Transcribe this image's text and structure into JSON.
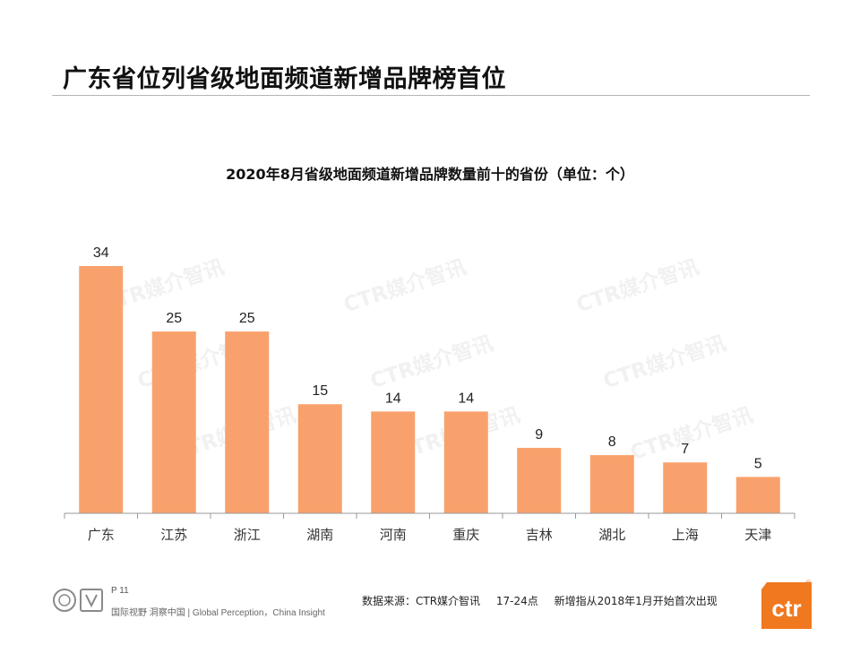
{
  "slide": {
    "title": "广东省位列省级地面频道新增品牌榜首位"
  },
  "chart_data": {
    "type": "bar",
    "title": "2020年8月省级地面频道新增品牌数量前十的省份（单位：个）",
    "categories": [
      "广东",
      "江苏",
      "浙江",
      "湖南",
      "河南",
      "重庆",
      "吉林",
      "湖北",
      "上海",
      "天津"
    ],
    "values": [
      34,
      25,
      25,
      15,
      14,
      14,
      9,
      8,
      7,
      5
    ],
    "xlabel": "",
    "ylabel": "",
    "ylim": [
      0,
      36
    ],
    "grid": false,
    "legend": "none",
    "data_labels": true,
    "bar_color": "#F9A16C"
  },
  "watermark": {
    "text": "CTR媒介智讯"
  },
  "footer": {
    "page": "P 11",
    "slogan": "国际视野  洞察中国 |  Global Perception，China Insight",
    "source": "数据来源：CTR媒介智讯",
    "time": "17-24点",
    "note": "新增指从2018年1月开始首次出现",
    "logo_text": "ctr",
    "logo_mark": "®",
    "logo_color": "#F0781E"
  }
}
